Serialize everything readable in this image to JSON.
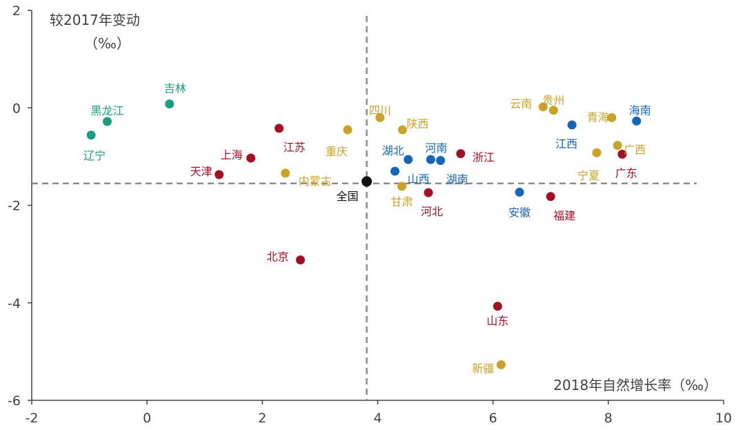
{
  "colors": {
    "teal": "#1a9e82",
    "crimson": "#a50f22",
    "gold": "#c9a227",
    "blue": "#1565b8",
    "black": "#111111",
    "axis": "#404040",
    "ref_line": "#8c8c8c"
  },
  "chart_data": {
    "type": "scatter",
    "xlabel": "2018年自然增长率（‰）",
    "ylabel_line1": "较2017年变动",
    "ylabel_line2": "（‰）",
    "xlim": [
      -2,
      10
    ],
    "ylim": [
      -6,
      2
    ],
    "xticks": [
      -2,
      0,
      2,
      4,
      6,
      8,
      10
    ],
    "yticks": [
      -6,
      -4,
      -2,
      0,
      2
    ],
    "reference": {
      "x": 3.81,
      "y": -1.55
    },
    "grid": false,
    "legend": "none",
    "points": [
      {
        "name": "吉林",
        "x": 0.39,
        "y": 0.08,
        "group": "teal"
      },
      {
        "name": "黑龙江",
        "x": -0.69,
        "y": -0.28,
        "group": "teal"
      },
      {
        "name": "辽宁",
        "x": -0.97,
        "y": -0.56,
        "group": "teal"
      },
      {
        "name": "江苏",
        "x": 2.29,
        "y": -0.42,
        "group": "crimson"
      },
      {
        "name": "上海",
        "x": 1.8,
        "y": -1.03,
        "group": "crimson"
      },
      {
        "name": "天津",
        "x": 1.25,
        "y": -1.37,
        "group": "crimson"
      },
      {
        "name": "北京",
        "x": 2.66,
        "y": -3.12,
        "group": "crimson"
      },
      {
        "name": "浙江",
        "x": 5.44,
        "y": -0.94,
        "group": "crimson"
      },
      {
        "name": "河北",
        "x": 4.88,
        "y": -1.74,
        "group": "crimson"
      },
      {
        "name": "福建",
        "x": 7.0,
        "y": -1.82,
        "group": "crimson"
      },
      {
        "name": "广东",
        "x": 8.24,
        "y": -0.95,
        "group": "crimson"
      },
      {
        "name": "山东",
        "x": 6.08,
        "y": -4.07,
        "group": "crimson"
      },
      {
        "name": "内蒙古",
        "x": 2.4,
        "y": -1.34,
        "group": "gold"
      },
      {
        "name": "重庆",
        "x": 3.48,
        "y": -0.45,
        "group": "gold"
      },
      {
        "name": "四川",
        "x": 4.04,
        "y": -0.2,
        "group": "gold"
      },
      {
        "name": "陕西",
        "x": 4.43,
        "y": -0.45,
        "group": "gold"
      },
      {
        "name": "甘肃",
        "x": 4.42,
        "y": -1.61,
        "group": "gold"
      },
      {
        "name": "云南",
        "x": 6.87,
        "y": 0.02,
        "group": "gold"
      },
      {
        "name": "贵州",
        "x": 7.05,
        "y": -0.05,
        "group": "gold"
      },
      {
        "name": "青海",
        "x": 8.06,
        "y": -0.2,
        "group": "gold"
      },
      {
        "name": "广西",
        "x": 8.16,
        "y": -0.77,
        "group": "gold"
      },
      {
        "name": "宁夏",
        "x": 7.8,
        "y": -0.92,
        "group": "gold"
      },
      {
        "name": "新疆",
        "x": 6.14,
        "y": -5.27,
        "group": "gold"
      },
      {
        "name": "湖北",
        "x": 4.53,
        "y": -1.06,
        "group": "blue"
      },
      {
        "name": "山西",
        "x": 4.3,
        "y": -1.3,
        "group": "blue"
      },
      {
        "name": "河南",
        "x": 4.92,
        "y": -1.06,
        "group": "blue"
      },
      {
        "name": "湖南",
        "x": 5.09,
        "y": -1.08,
        "group": "blue"
      },
      {
        "name": "江西",
        "x": 7.37,
        "y": -0.35,
        "group": "blue"
      },
      {
        "name": "海南",
        "x": 8.49,
        "y": -0.27,
        "group": "blue"
      },
      {
        "name": "安徽",
        "x": 6.46,
        "y": -1.73,
        "group": "blue"
      },
      {
        "name": "全国",
        "x": 3.81,
        "y": -1.51,
        "group": "black"
      }
    ]
  }
}
